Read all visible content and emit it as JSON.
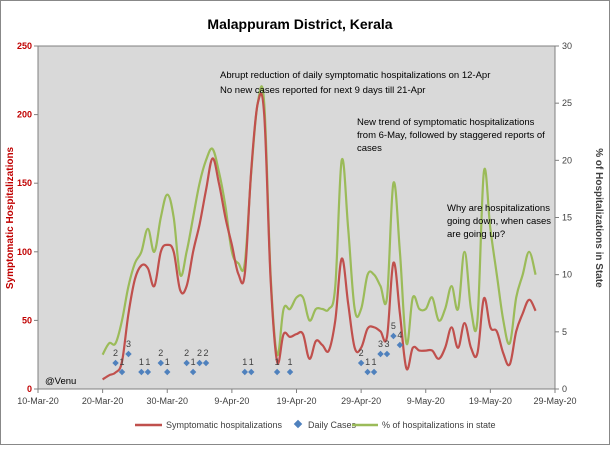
{
  "chart_data": {
    "type": "line",
    "title": "Malappuram District, Kerala",
    "watermark": "@Venu",
    "ylabel_left": "Symptomatic Hospitalizations",
    "ylabel_right": "% of Hospitalizations in State",
    "y_left_lim": [
      0,
      250
    ],
    "y_left_ticks": [
      "0",
      "50",
      "100",
      "150",
      "200",
      "250"
    ],
    "y_right_lim": [
      0,
      30
    ],
    "y_right_ticks": [
      "0",
      "5",
      "10",
      "15",
      "20",
      "25",
      "30"
    ],
    "x_lim_days": [
      0,
      80
    ],
    "x_ticks": [
      {
        "day": 0,
        "label": "10-Mar-20"
      },
      {
        "day": 10,
        "label": "20-Mar-20"
      },
      {
        "day": 20,
        "label": "30-Mar-20"
      },
      {
        "day": 30,
        "label": "9-Apr-20"
      },
      {
        "day": 40,
        "label": "19-Apr-20"
      },
      {
        "day": 50,
        "label": "29-Apr-20"
      },
      {
        "day": 60,
        "label": "9-May-20"
      },
      {
        "day": 70,
        "label": "19-May-20"
      },
      {
        "day": 80,
        "label": "29-May-20"
      }
    ],
    "annotations": [
      "Abrupt reduction of daily symptomatic hospitalizations on 12-Apr",
      "No new cases reported for next 9 days till 21-Apr",
      "New trend of symptomatic hospitalizations",
      "from 6-May, followed by staggered reports of",
      "cases",
      "Why are hospitalizations",
      "going down, when cases",
      "are going up?"
    ],
    "series": [
      {
        "name": "Symptomatic hospitalizations",
        "axis": "left",
        "color": "#c0504d",
        "points": [
          [
            10,
            7
          ],
          [
            11,
            10
          ],
          [
            12,
            12
          ],
          [
            13,
            20
          ],
          [
            14,
            55
          ],
          [
            15,
            80
          ],
          [
            16,
            90
          ],
          [
            17,
            88
          ],
          [
            18,
            75
          ],
          [
            19,
            100
          ],
          [
            20,
            105
          ],
          [
            21,
            100
          ],
          [
            22,
            72
          ],
          [
            23,
            75
          ],
          [
            24,
            100
          ],
          [
            25,
            120
          ],
          [
            26,
            145
          ],
          [
            27,
            168
          ],
          [
            28,
            150
          ],
          [
            29,
            125
          ],
          [
            30,
            105
          ],
          [
            31,
            84
          ],
          [
            32,
            84
          ],
          [
            33,
            160
          ],
          [
            34,
            208
          ],
          [
            35,
            200
          ],
          [
            36,
            80
          ],
          [
            37,
            20
          ],
          [
            38,
            40
          ],
          [
            39,
            38
          ],
          [
            40,
            40
          ],
          [
            41,
            40
          ],
          [
            42,
            22
          ],
          [
            43,
            35
          ],
          [
            44,
            32
          ],
          [
            45,
            28
          ],
          [
            46,
            50
          ],
          [
            47,
            95
          ],
          [
            48,
            62
          ],
          [
            49,
            30
          ],
          [
            50,
            30
          ],
          [
            51,
            44
          ],
          [
            52,
            45
          ],
          [
            53,
            42
          ],
          [
            54,
            38
          ],
          [
            55,
            92
          ],
          [
            56,
            55
          ],
          [
            57,
            15
          ],
          [
            58,
            30
          ],
          [
            59,
            28
          ],
          [
            60,
            28
          ],
          [
            61,
            28
          ],
          [
            62,
            22
          ],
          [
            63,
            30
          ],
          [
            64,
            45
          ],
          [
            65,
            30
          ],
          [
            66,
            48
          ],
          [
            67,
            30
          ],
          [
            68,
            26
          ],
          [
            69,
            66
          ],
          [
            70,
            45
          ],
          [
            71,
            42
          ],
          [
            72,
            26
          ],
          [
            73,
            18
          ],
          [
            74,
            42
          ],
          [
            75,
            55
          ],
          [
            76,
            65
          ],
          [
            77,
            57
          ]
        ]
      },
      {
        "name": "Daily Cases",
        "axis": "left",
        "color": "#4f81bd",
        "points": [
          [
            12,
            2
          ],
          [
            13,
            1
          ],
          [
            14,
            3
          ],
          [
            16,
            1
          ],
          [
            17,
            1
          ],
          [
            19,
            2
          ],
          [
            20,
            1
          ],
          [
            23,
            2
          ],
          [
            24,
            1
          ],
          [
            25,
            2
          ],
          [
            26,
            2
          ],
          [
            32,
            1
          ],
          [
            33,
            1
          ],
          [
            37,
            1
          ],
          [
            39,
            1
          ],
          [
            50,
            2
          ],
          [
            51,
            1
          ],
          [
            52,
            1
          ],
          [
            53,
            3
          ],
          [
            54,
            3
          ],
          [
            55,
            5
          ],
          [
            56,
            4
          ]
        ]
      },
      {
        "name": "% of hospitalizations in state",
        "axis": "right",
        "color": "#9bbb59",
        "points": [
          [
            10,
            3
          ],
          [
            11,
            4
          ],
          [
            12,
            4
          ],
          [
            13,
            6
          ],
          [
            14,
            9
          ],
          [
            15,
            11
          ],
          [
            16,
            12
          ],
          [
            17,
            14
          ],
          [
            18,
            12
          ],
          [
            19,
            15
          ],
          [
            20,
            17
          ],
          [
            21,
            15
          ],
          [
            22,
            10
          ],
          [
            23,
            12
          ],
          [
            24,
            15
          ],
          [
            25,
            18
          ],
          [
            26,
            20
          ],
          [
            27,
            21
          ],
          [
            28,
            19
          ],
          [
            29,
            16
          ],
          [
            30,
            12
          ],
          [
            31,
            11
          ],
          [
            32,
            11
          ],
          [
            33,
            19
          ],
          [
            34,
            25
          ],
          [
            35,
            25
          ],
          [
            36,
            10
          ],
          [
            37,
            3
          ],
          [
            38,
            7
          ],
          [
            39,
            7
          ],
          [
            40,
            8
          ],
          [
            41,
            8
          ],
          [
            42,
            6
          ],
          [
            43,
            7
          ],
          [
            44,
            7
          ],
          [
            45,
            7
          ],
          [
            46,
            9
          ],
          [
            47,
            20
          ],
          [
            48,
            14
          ],
          [
            49,
            7
          ],
          [
            50,
            7
          ],
          [
            51,
            10
          ],
          [
            52,
            10
          ],
          [
            53,
            9
          ],
          [
            54,
            8
          ],
          [
            55,
            18
          ],
          [
            56,
            12
          ],
          [
            57,
            4
          ],
          [
            58,
            8
          ],
          [
            59,
            7
          ],
          [
            60,
            7
          ],
          [
            61,
            8
          ],
          [
            62,
            6
          ],
          [
            63,
            7
          ],
          [
            64,
            9
          ],
          [
            65,
            7
          ],
          [
            66,
            12
          ],
          [
            67,
            7
          ],
          [
            68,
            6
          ],
          [
            69,
            19
          ],
          [
            70,
            14
          ],
          [
            71,
            10
          ],
          [
            72,
            6
          ],
          [
            73,
            4
          ],
          [
            74,
            8
          ],
          [
            75,
            10
          ],
          [
            76,
            12
          ],
          [
            77,
            10
          ]
        ]
      }
    ],
    "daily_case_labels": [
      {
        "day": 12,
        "value": "2"
      },
      {
        "day": 13,
        "value": "1"
      },
      {
        "day": 14,
        "value": "3"
      },
      {
        "day": 16,
        "value": "1"
      },
      {
        "day": 17,
        "value": "1"
      },
      {
        "day": 19,
        "value": "2"
      },
      {
        "day": 20,
        "value": "1"
      },
      {
        "day": 23,
        "value": "2"
      },
      {
        "day": 24,
        "value": "1"
      },
      {
        "day": 25,
        "value": "2"
      },
      {
        "day": 26,
        "value": "2"
      },
      {
        "day": 32,
        "value": "1"
      },
      {
        "day": 33,
        "value": "1"
      },
      {
        "day": 37,
        "value": "1"
      },
      {
        "day": 39,
        "value": "1"
      },
      {
        "day": 50,
        "value": "2"
      },
      {
        "day": 51,
        "value": "1"
      },
      {
        "day": 52,
        "value": "1"
      },
      {
        "day": 53,
        "value": "3"
      },
      {
        "day": 54,
        "value": "3"
      },
      {
        "day": 55,
        "value": "5"
      },
      {
        "day": 56,
        "value": "4"
      }
    ],
    "legend": [
      "Symptomatic hospitalizations",
      "Daily Cases",
      "% of hospitalizations in state"
    ]
  }
}
